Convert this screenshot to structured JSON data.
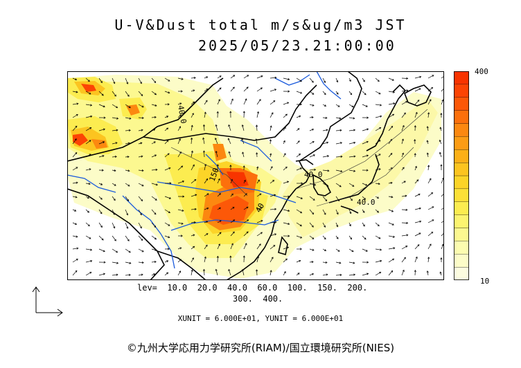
{
  "title": {
    "line1": "U-V&Dust total m/s&ug/m3 JST",
    "line2": "2025/05/23.21:00:00"
  },
  "legend": {
    "max_label": "400",
    "min_label": "10",
    "colors": [
      "#fcfce0",
      "#fcfcc8",
      "#fcfcb0",
      "#fcf890",
      "#fcf470",
      "#fcec50",
      "#fce038",
      "#fcd428",
      "#fcc420",
      "#fcb018",
      "#fc9c14",
      "#fc8810",
      "#fc700c",
      "#fc5808",
      "#fc4404",
      "#f83400"
    ]
  },
  "contour_labels": [
    "40.0",
    "150",
    "40",
    "40.0",
    "40.0"
  ],
  "levels": {
    "line1": "lev=  10.0  20.0  40.0  60.0  100.  150.  200.",
    "line2": "300.  400."
  },
  "units": "XUNIT = 6.000E+01, YUNIT = 6.000E+01",
  "credit": "©九州大学応用力学研究所(RIAM)/国立環境研究所(NIES)"
}
